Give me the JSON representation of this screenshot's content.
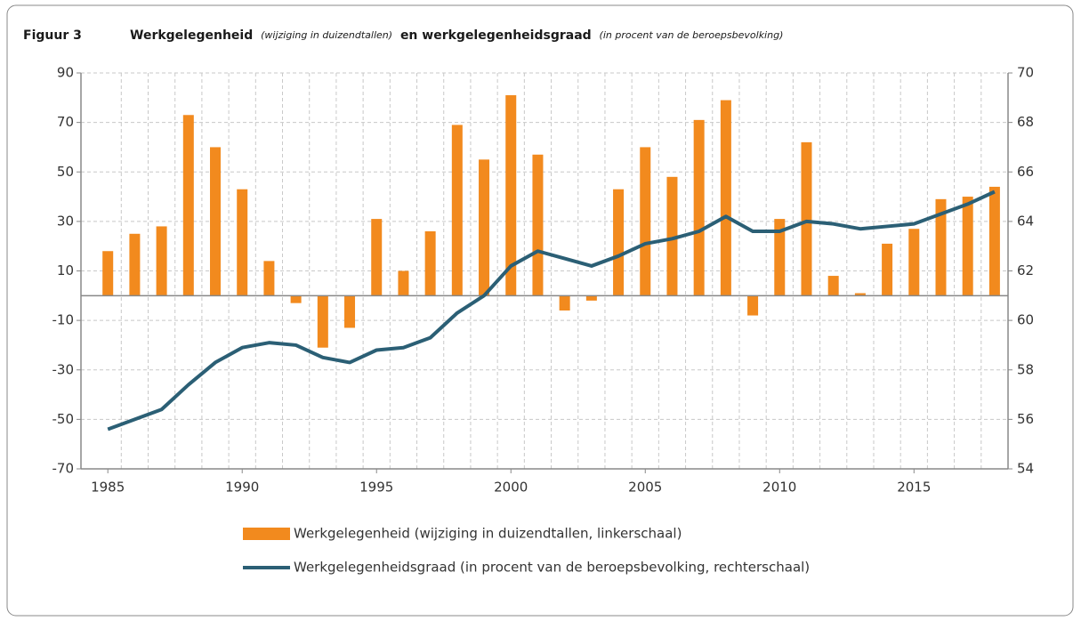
{
  "chart_data": {
    "type": "bar-line",
    "figure_label": "Figuur 3",
    "title": "Werkgelegenheid",
    "title_note": "(wijziging in duizendtallen)",
    "title_2": "en werkgelegenheidsgraad",
    "title_note_2": "(in procent van de beroepsbevolking)",
    "x": [
      1985,
      1986,
      1987,
      1988,
      1989,
      1990,
      1991,
      1992,
      1993,
      1994,
      1995,
      1996,
      1997,
      1998,
      1999,
      2000,
      2001,
      2002,
      2003,
      2004,
      2005,
      2006,
      2007,
      2008,
      2009,
      2010,
      2011,
      2012,
      2013,
      2014,
      2015,
      2016,
      2017,
      2018
    ],
    "xlim": [
      1984,
      2018.5
    ],
    "xticks": [
      1985,
      1990,
      1995,
      2000,
      2005,
      2010,
      2015
    ],
    "ylim": [
      -70,
      90
    ],
    "yticks": [
      -70,
      -50,
      -30,
      -10,
      10,
      30,
      50,
      70,
      90
    ],
    "y2lim": [
      54,
      70
    ],
    "y2ticks": [
      54,
      56,
      58,
      60,
      62,
      64,
      66,
      68,
      70
    ],
    "grid": true,
    "series": [
      {
        "name": "Werkgelegenheid (wijziging in duizendtallen, linkerschaal)",
        "type": "bar",
        "color": "#f28a1e",
        "values": [
          18,
          25,
          28,
          73,
          60,
          43,
          14,
          -3,
          -21,
          -13,
          31,
          10,
          26,
          69,
          55,
          81,
          57,
          -6,
          -2,
          43,
          60,
          48,
          71,
          79,
          -8,
          31,
          62,
          8,
          1,
          21,
          27,
          39,
          40,
          44
        ]
      },
      {
        "name": "Werkgelegenheidsgraad (in procent van de beroepsbevolking, rechterschaal)",
        "type": "line",
        "axis": "y2",
        "color": "#2b5f75",
        "values": [
          55.6,
          56.0,
          56.4,
          57.4,
          58.3,
          58.9,
          59.1,
          59.0,
          58.5,
          58.3,
          58.8,
          58.9,
          59.3,
          60.3,
          61.0,
          62.2,
          62.8,
          62.5,
          62.2,
          62.6,
          63.1,
          63.3,
          63.6,
          64.2,
          63.6,
          63.6,
          64.0,
          63.9,
          63.7,
          63.8,
          63.9,
          64.3,
          64.7,
          65.2
        ]
      }
    ]
  }
}
